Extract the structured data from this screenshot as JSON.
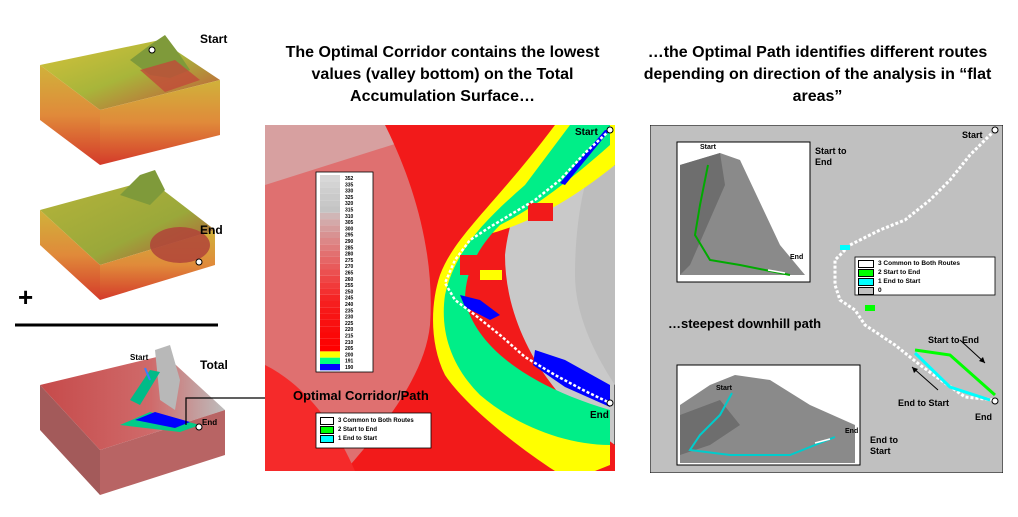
{
  "left": {
    "start_label": "Start",
    "end_label": "End",
    "total_label": "Total",
    "plus_sign": "+",
    "total_start_label": "Start",
    "total_end_label": "End"
  },
  "center": {
    "heading": "The Optimal Corridor contains the lowest values (valley bottom) on the Total Accumulation Surface…",
    "start_label": "Start",
    "end_label": "End",
    "scale_values": [
      "352",
      "335",
      "330",
      "325",
      "320",
      "315",
      "310",
      "305",
      "300",
      "295",
      "290",
      "285",
      "280",
      "275",
      "270",
      "265",
      "260",
      "255",
      "250",
      "245",
      "240",
      "235",
      "230",
      "225",
      "220",
      "215",
      "210",
      "205",
      "200",
      "191",
      "190"
    ],
    "scale_colors": [
      "#d8d8d8",
      "#d3d3d3",
      "#cecece",
      "#cacaca",
      "#c8c8c8",
      "#c4c4c4",
      "#d0b6b6",
      "#d3a9a9",
      "#d59d9d",
      "#d89292",
      "#dc8787",
      "#df7c7c",
      "#e27070",
      "#e56666",
      "#e85b5b",
      "#eb5050",
      "#ee4545",
      "#f13a3a",
      "#f33030",
      "#f52525",
      "#f61e1e",
      "#f71818",
      "#f81414",
      "#f91010",
      "#fa0c0c",
      "#fb0808",
      "#fc0404",
      "#ff0000",
      "#ffff00",
      "#00ff80",
      "#0000ff"
    ],
    "legend": [
      {
        "label": "3 Common to Both Routes",
        "color": "#ffffff"
      },
      {
        "label": "2 Start to End",
        "color": "#00ff00"
      },
      {
        "label": "1 End to Start",
        "color": "#00ffff"
      }
    ],
    "callout": "Optimal Corridor/Path"
  },
  "right": {
    "heading": "…the Optimal Path identifies different routes depending on direction of the analysis in “flat areas”",
    "start_label": "Start",
    "end_label": "End",
    "start_to_end_caption": "Start to End",
    "end_to_start_caption": "End to Start",
    "inset_start_label": "Start",
    "inset_end_label": "End",
    "inset2_start_label": "Start",
    "inset2_end_label": "End",
    "steepest": "…steepest downhill path",
    "legend": [
      {
        "label": "3 Common to Both Routes",
        "color": "#ffffff"
      },
      {
        "label": "2 Start to End",
        "color": "#00ff00"
      },
      {
        "label": "1 End to Start",
        "color": "#00ffff"
      },
      {
        "label": "0",
        "color": "#c0c0c0"
      }
    ],
    "arrow_start_to_end": "Start to End",
    "arrow_end_to_start": "End to Start"
  }
}
